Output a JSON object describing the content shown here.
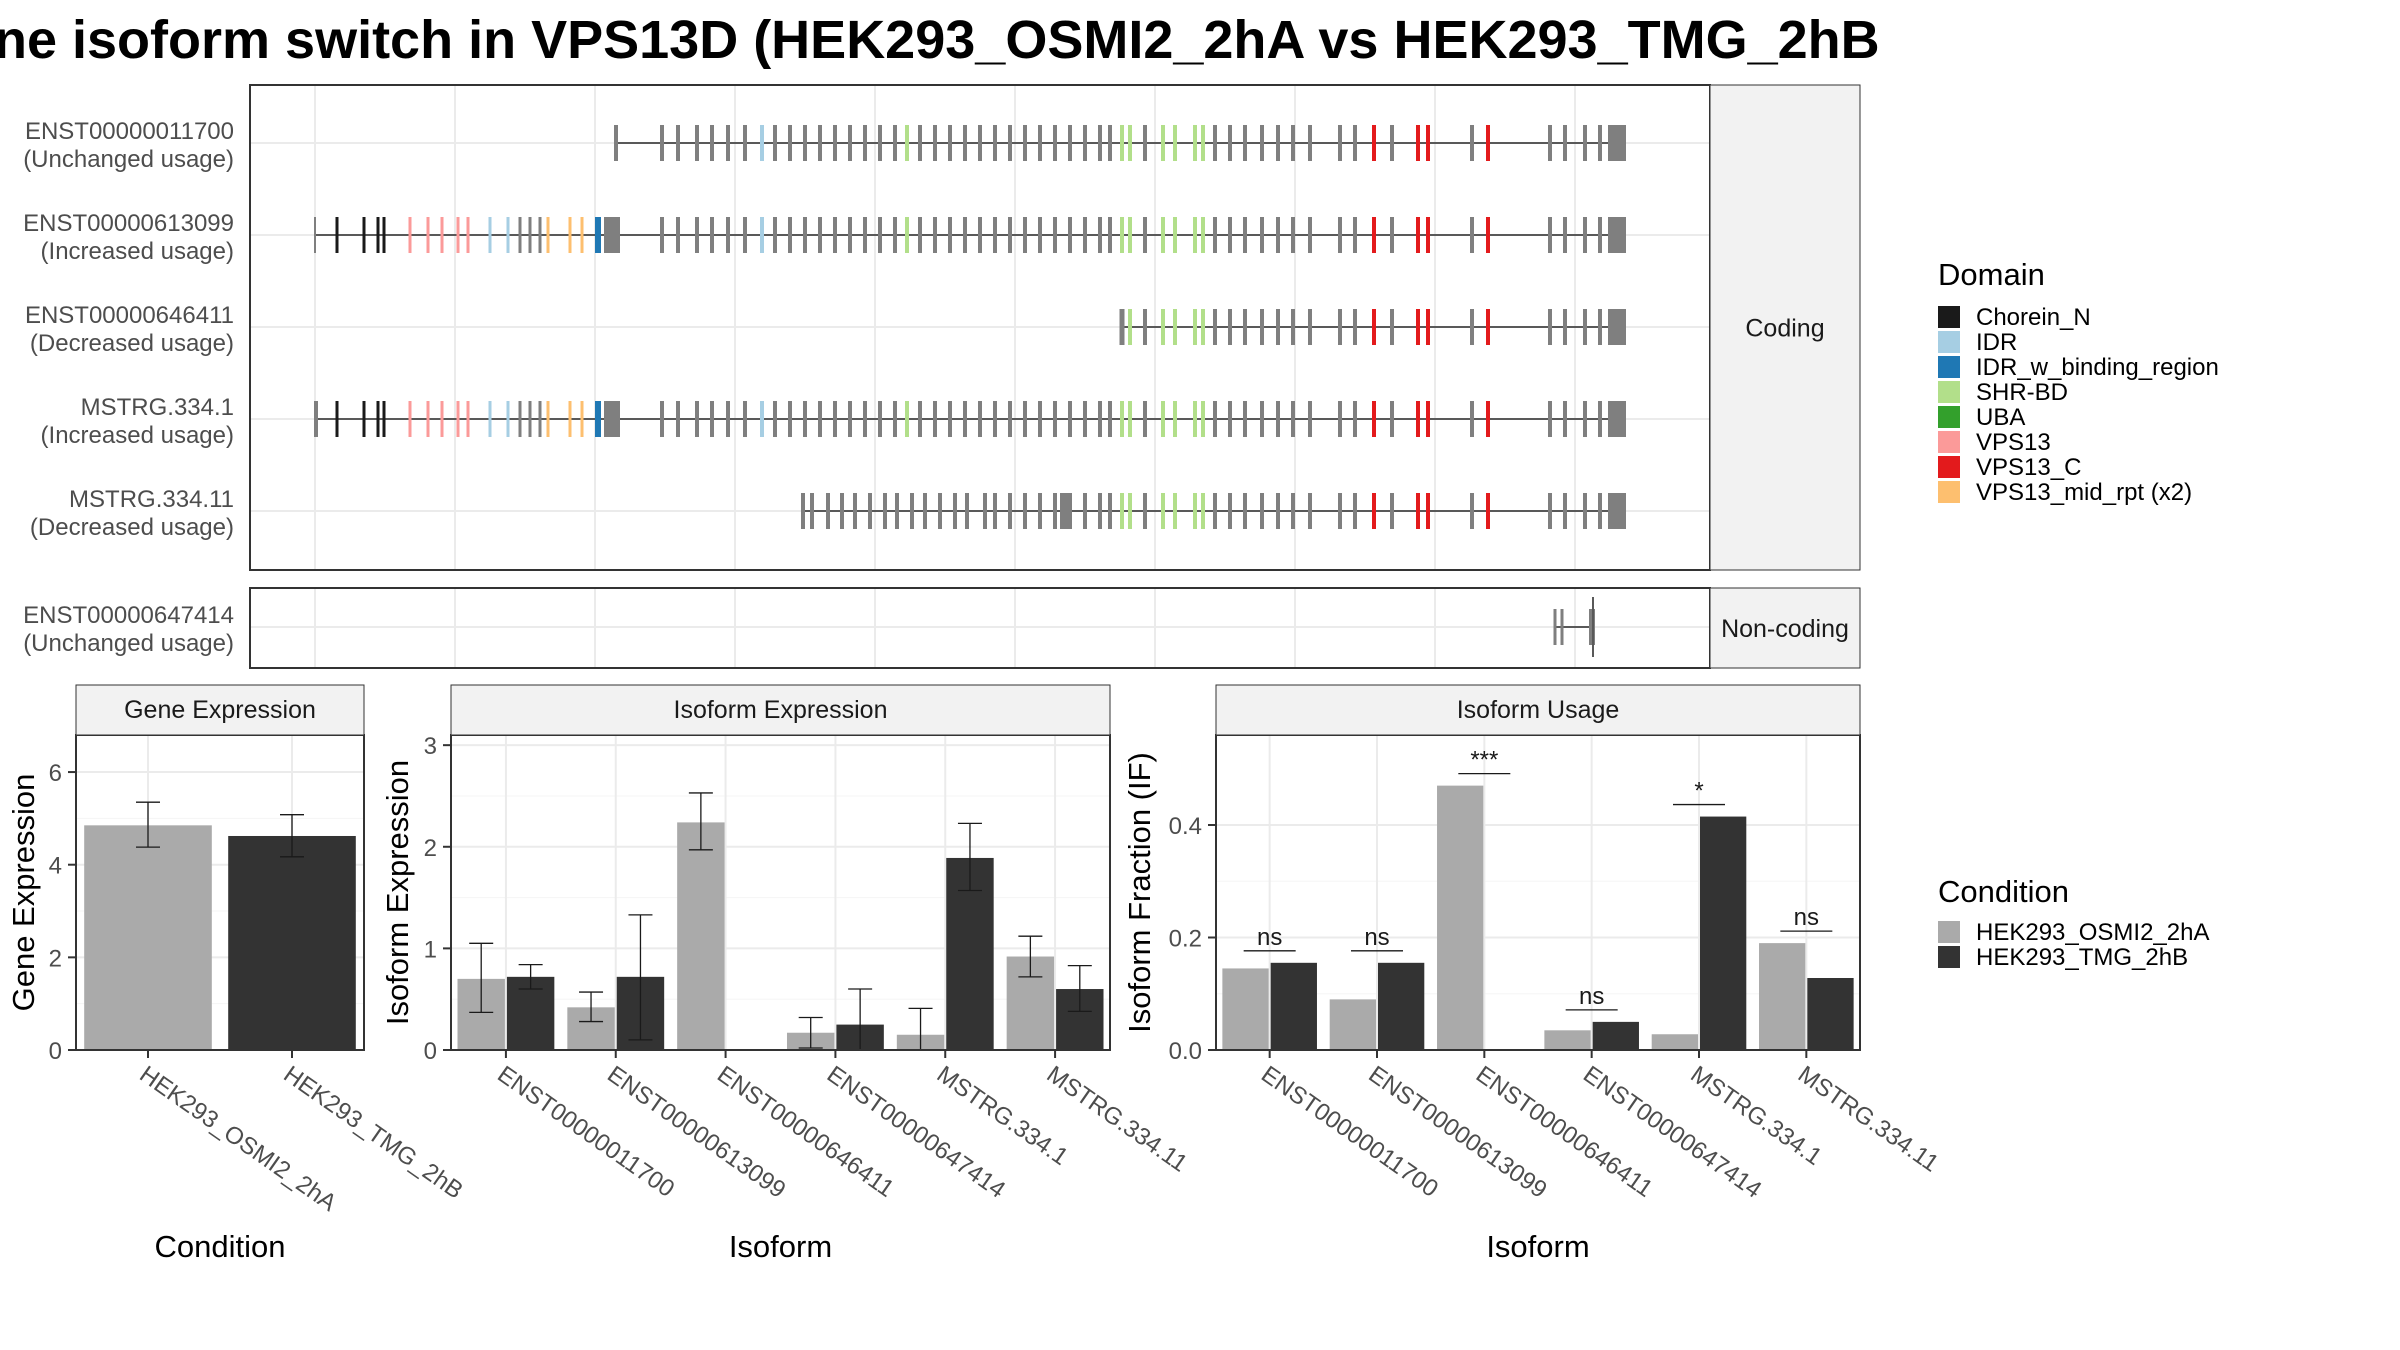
{
  "title": "ne isoform switch in VPS13D (HEK293_OSMI2_2hA vs HEK293_TMG_2hB",
  "colors": {
    "exon": "#7f7f7f",
    "intron": "#595959",
    "panel_border": "#333333",
    "strip_fill": "#f2f2f2",
    "grid": "#ebebeb",
    "condition_a": "#aaaaaa",
    "condition_b": "#333333"
  },
  "transcripts": {
    "facets": [
      {
        "label": "Coding",
        "rows": [
          {
            "id": "ENST00000011700",
            "note": "(Unchanged usage)"
          },
          {
            "id": "ENST00000613099",
            "note": "(Increased usage)"
          },
          {
            "id": "ENST00000646411",
            "note": "(Decreased usage)"
          },
          {
            "id": "MSTRG.334.1",
            "note": "(Increased usage)"
          },
          {
            "id": "MSTRG.334.11",
            "note": "(Decreased usage)"
          }
        ]
      },
      {
        "label": "Non-coding",
        "rows": [
          {
            "id": "ENST00000647414",
            "note": "(Unchanged usage)"
          }
        ]
      }
    ]
  },
  "domain_legend": {
    "title": "Domain",
    "items": [
      {
        "name": "Chorein_N",
        "color": "#1a1a1a"
      },
      {
        "name": "IDR",
        "color": "#a6cee3"
      },
      {
        "name": "IDR_w_binding_region",
        "color": "#1f78b4"
      },
      {
        "name": "SHR-BD",
        "color": "#b2df8a"
      },
      {
        "name": "UBA",
        "color": "#33a02c"
      },
      {
        "name": "VPS13",
        "color": "#fb9a99"
      },
      {
        "name": "VPS13_C",
        "color": "#e31a1c"
      },
      {
        "name": "VPS13_mid_rpt (x2)",
        "color": "#fdbf6f"
      }
    ]
  },
  "condition_legend": {
    "title": "Condition",
    "items": [
      {
        "name": "HEK293_OSMI2_2hA",
        "color": "#aaaaaa"
      },
      {
        "name": "HEK293_TMG_2hB",
        "color": "#333333"
      }
    ]
  },
  "chart_data": [
    {
      "type": "bar",
      "title": "Gene Expression",
      "xlabel": "Condition",
      "ylabel": "Gene Expression",
      "ylim": [
        0,
        6.8
      ],
      "yticks": [
        0,
        2,
        4,
        6
      ],
      "grid": true,
      "categories": [
        "HEK293_OSMI2_2hA",
        "HEK293_TMG_2hB"
      ],
      "series": [
        {
          "values": [
            4.85,
            4.62
          ],
          "err_low": [
            4.38,
            4.17
          ],
          "err_high": [
            5.35,
            5.08
          ]
        }
      ]
    },
    {
      "type": "bar",
      "title": "Isoform Expression",
      "xlabel": "Isoform",
      "ylabel": "Isoform Expression",
      "ylim": [
        0,
        3.1
      ],
      "yticks": [
        0,
        1,
        2,
        3
      ],
      "grid": true,
      "categories": [
        "ENST00000011700",
        "ENST00000613099",
        "ENST00000646411",
        "ENST00000647414",
        "MSTRG.334.1",
        "MSTRG.334.11"
      ],
      "series": [
        {
          "name": "HEK293_OSMI2_2hA",
          "values": [
            0.7,
            0.42,
            2.24,
            0.17,
            0.15,
            0.92
          ],
          "err_low": [
            0.37,
            0.28,
            1.97,
            0.02,
            0.0,
            0.72
          ],
          "err_high": [
            1.05,
            0.57,
            2.53,
            0.32,
            0.41,
            1.12
          ]
        },
        {
          "name": "HEK293_TMG_2hB",
          "values": [
            0.72,
            0.72,
            0.0,
            0.25,
            1.89,
            0.6
          ],
          "err_low": [
            0.6,
            0.1,
            0.0,
            0.0,
            1.57,
            0.38
          ],
          "err_high": [
            0.84,
            1.33,
            0.0,
            0.6,
            2.23,
            0.83
          ]
        }
      ]
    },
    {
      "type": "bar",
      "title": "Isoform Usage",
      "xlabel": "Isoform",
      "ylabel": "Isoform Fraction (IF)",
      "ylim": [
        0,
        0.56
      ],
      "yticks": [
        0.0,
        0.2,
        0.4
      ],
      "grid": true,
      "categories": [
        "ENST00000011700",
        "ENST00000613099",
        "ENST00000646411",
        "ENST00000647414",
        "MSTRG.334.1",
        "MSTRG.334.11"
      ],
      "series": [
        {
          "name": "HEK293_OSMI2_2hA",
          "values": [
            0.145,
            0.09,
            0.47,
            0.035,
            0.028,
            0.19
          ]
        },
        {
          "name": "HEK293_TMG_2hB",
          "values": [
            0.155,
            0.155,
            0.0,
            0.05,
            0.415,
            0.128
          ]
        }
      ],
      "significance": [
        "ns",
        "ns",
        "***",
        "ns",
        "*",
        "ns"
      ]
    }
  ]
}
